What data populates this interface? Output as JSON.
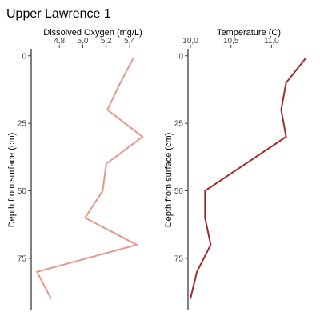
{
  "title": "Upper Lawrence 1",
  "chart_data": [
    {
      "type": "line",
      "xlabel": "Dissolved Oxygen (mg/L)",
      "ylabel": "Depth from surface (cm)",
      "x_axis_position": "top",
      "y_reversed": true,
      "xlim": [
        4.56,
        5.57
      ],
      "ylim": [
        -2,
        94
      ],
      "xticks": [
        4.8,
        5.0,
        5.2,
        5.4
      ],
      "xtick_labels": [
        "4,8",
        "5,0",
        "5,2",
        "5,4"
      ],
      "yticks": [
        0,
        25,
        50,
        75
      ],
      "ytick_labels": [
        "0",
        "25",
        "50",
        "75"
      ],
      "grid": false,
      "color": "#e8968c",
      "series": [
        {
          "x": [
            5.43,
            5.32,
            5.21,
            5.51,
            5.2,
            5.17,
            5.02,
            5.46,
            4.61,
            4.73
          ],
          "y": [
            1,
            10,
            20,
            30,
            40,
            50,
            60,
            70,
            80,
            90
          ]
        }
      ]
    },
    {
      "type": "line",
      "xlabel": "Temperature (C)",
      "ylabel": "Depth from surface (cm)",
      "x_axis_position": "top",
      "y_reversed": true,
      "xlim": [
        9.97,
        11.48
      ],
      "ylim": [
        -2,
        94
      ],
      "xticks": [
        10.0,
        10.5,
        11.0
      ],
      "xtick_labels": [
        "10,0",
        "10,5",
        "11,0"
      ],
      "yticks": [
        0,
        25,
        50,
        75
      ],
      "ytick_labels": [
        "0",
        "25",
        "50",
        "75"
      ],
      "grid": false,
      "color": "#a52a2a",
      "series": [
        {
          "x": [
            11.42,
            11.18,
            11.12,
            11.18,
            10.68,
            10.18,
            10.18,
            10.25,
            10.08,
            10.0
          ],
          "y": [
            1,
            10,
            20,
            30,
            40,
            50,
            60,
            70,
            80,
            90
          ]
        }
      ]
    }
  ]
}
